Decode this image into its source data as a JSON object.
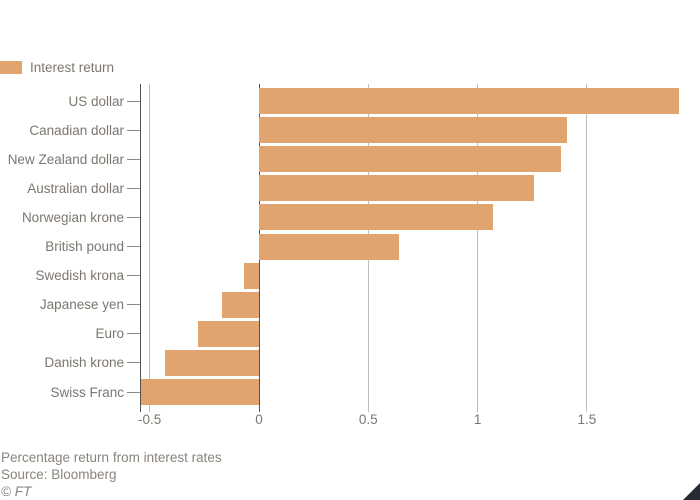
{
  "legend": {
    "label": "Interest return"
  },
  "chart_data": {
    "type": "bar",
    "orientation": "horizontal",
    "series_name": "Interest return",
    "categories": [
      "US dollar",
      "Canadian dollar",
      "New Zealand dollar",
      "Australian dollar",
      "Norwegian krone",
      "British pound",
      "Swedish krona",
      "Japanese yen",
      "Euro",
      "Danish krone",
      "Swiss Franc"
    ],
    "values": [
      1.92,
      1.41,
      1.38,
      1.26,
      1.07,
      0.64,
      -0.07,
      -0.17,
      -0.28,
      -0.43,
      -0.54
    ],
    "x_ticks": [
      "-0.5",
      "0",
      "0.5",
      "1",
      "1.5"
    ],
    "x_tick_values": [
      -0.5,
      0,
      0.5,
      1,
      1.5
    ],
    "xlim": [
      -0.55,
      2.0
    ],
    "grid": "vertical",
    "legend_position": "top-left",
    "zero_line": true
  },
  "footer": {
    "note": "Percentage return from interest rates",
    "source": "Source: Bloomberg",
    "copyright": "© FT"
  },
  "colors": {
    "background": "#ffffff",
    "bar": "#e2a46f",
    "grid": "#c4bdb7",
    "axis": "#57514c",
    "label": "#7c766f",
    "footer_text": "#8a847d",
    "category_tick": "#8f8983",
    "corner_triangle": "#262b33"
  }
}
